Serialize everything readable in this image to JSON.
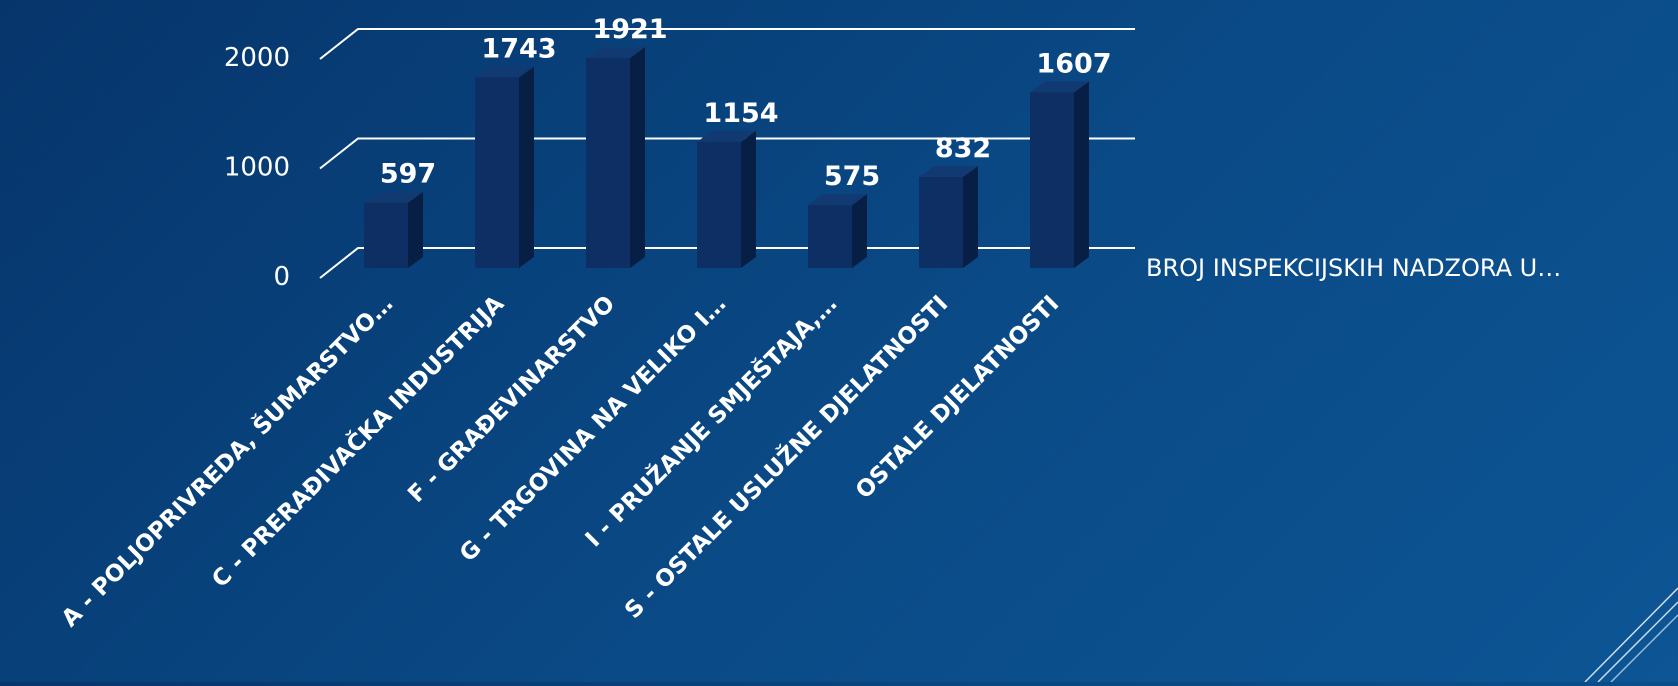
{
  "colors": {
    "bar_front": "#0d2f63",
    "bar_top": "#123a72",
    "bar_side": "#081f45",
    "grid": "#ffffff",
    "text": "#ffffff"
  },
  "chart_data": {
    "type": "bar",
    "categories": [
      "A - POLJOPRIVREDA, ŠUMARSTVO…",
      "C - PRERAĐIVAČKA INDUSTRIJA",
      "F - GRAĐEVINARSTVO",
      "G - TRGOVINA NA VELIKO I…",
      "I - PRUŽANJE SMJEŠTAJA,…",
      "S - OSTALE USLUŽNE DJELATNOSTI",
      "OSTALE DJELATNOSTI"
    ],
    "series": [
      {
        "name": "BROJ INSPEKCIJSKIH NADZORA U…",
        "values": [
          597,
          1743,
          1921,
          1154,
          575,
          832,
          1607
        ]
      }
    ],
    "ylim": [
      0,
      2000
    ],
    "yticks": [
      "0",
      "1000",
      "2000"
    ],
    "grid": true,
    "legend_position": "right",
    "data_labels": true
  }
}
